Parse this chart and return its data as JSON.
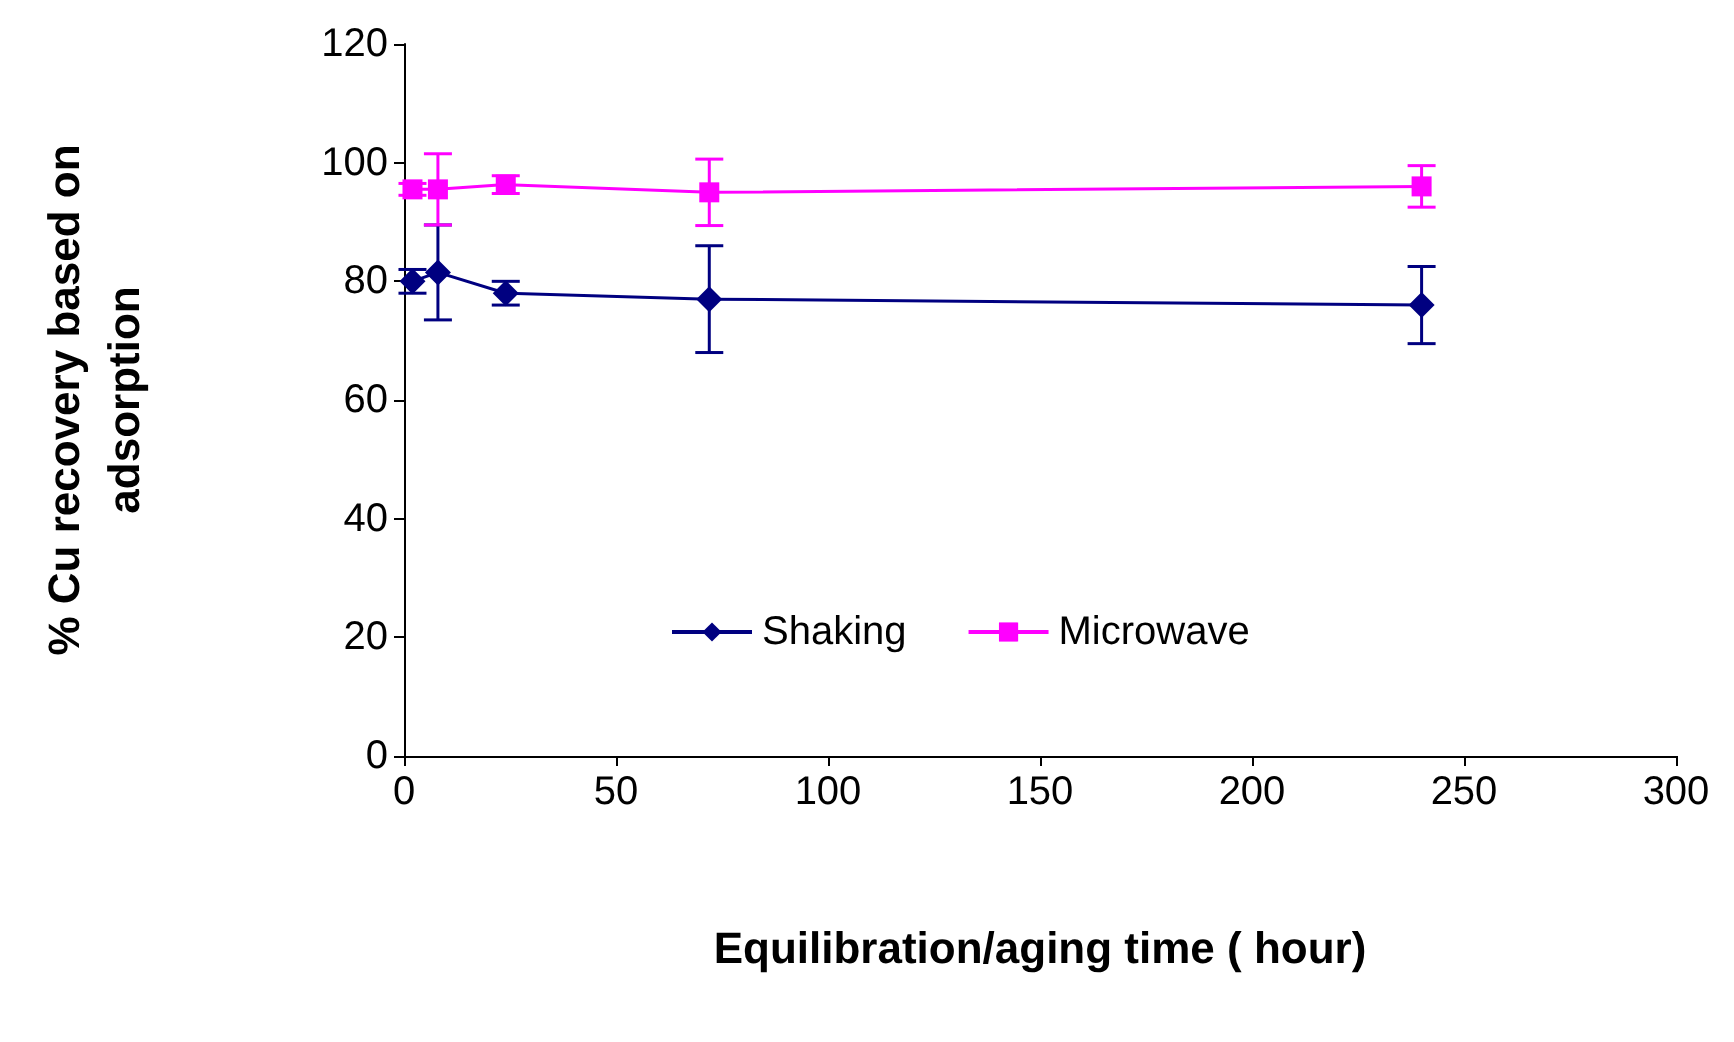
{
  "chart_data": {
    "type": "line",
    "xlabel": "Equilibration/aging time ( hour)",
    "ylabel": "% Cu recovery based on adsorption",
    "x": [
      2,
      8,
      24,
      72,
      240
    ],
    "series": [
      {
        "name": "Shaking",
        "color": "#000080",
        "marker": "diamond",
        "values": [
          80,
          81.5,
          78,
          77,
          76
        ],
        "errors": [
          2,
          8,
          2,
          9,
          6.5
        ]
      },
      {
        "name": "Microwave",
        "color": "#ff00ff",
        "marker": "square",
        "values": [
          95.5,
          95.5,
          96.3,
          95,
          96
        ],
        "errors": [
          1,
          6,
          1.5,
          5.6,
          3.5
        ]
      }
    ],
    "xlim": [
      0,
      300
    ],
    "xticks": [
      0,
      50,
      100,
      150,
      200,
      250,
      300
    ],
    "ylim": [
      0,
      120
    ],
    "yticks": [
      0,
      20,
      40,
      60,
      80,
      100,
      120
    ],
    "grid": false,
    "legend": "bottom"
  }
}
